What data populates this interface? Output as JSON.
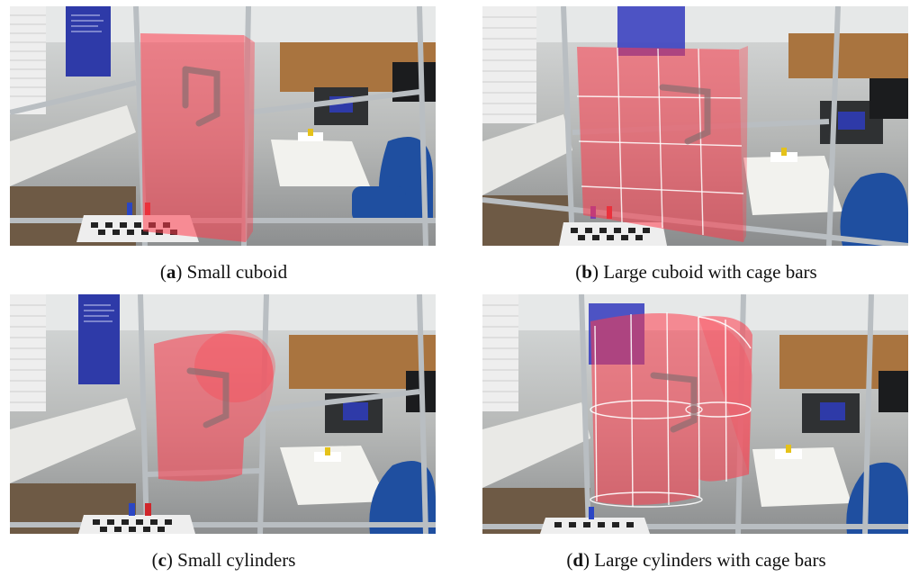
{
  "panels": [
    {
      "id": "a",
      "label": "a",
      "caption": "Small cuboid"
    },
    {
      "id": "b",
      "label": "b",
      "caption": "Large cuboid with cage bars"
    },
    {
      "id": "c",
      "label": "c",
      "caption": "Small cylinders"
    },
    {
      "id": "d",
      "label": "d",
      "caption": "Large cylinders with cage bars"
    }
  ],
  "colors": {
    "overlay_red": "#ff3b4a",
    "cage_bar": "#ffffff",
    "frame_metal": "#b9bec2",
    "blue_screen": "#2e3aa8",
    "chair_blue": "#1f4fa0",
    "table_white": "#f2f2ee"
  }
}
